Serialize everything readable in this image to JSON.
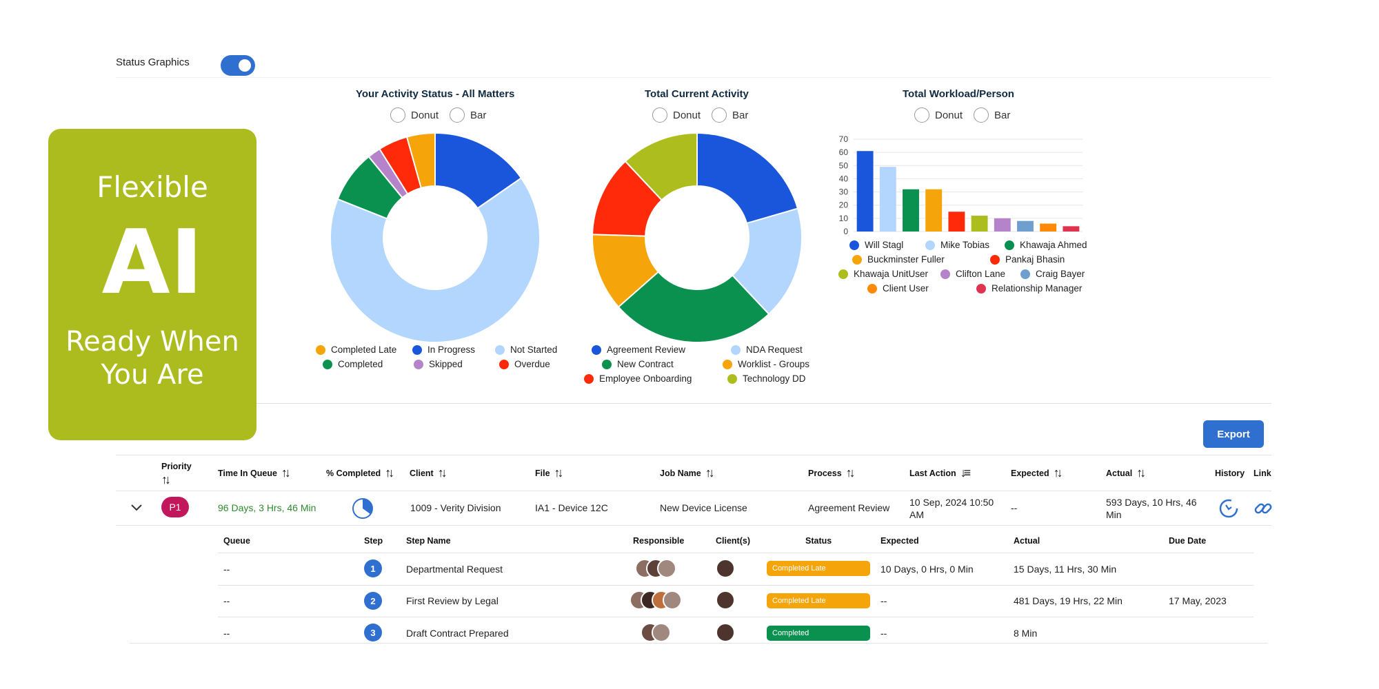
{
  "toggle": {
    "label": "Status Graphics",
    "checked": true
  },
  "charts": {
    "activity": {
      "title": "Your Activity Status - All Matters",
      "options": [
        "Donut",
        "Bar"
      ],
      "legend": [
        {
          "label": "Completed Late",
          "color": "#f5a40a"
        },
        {
          "label": "In Progress",
          "color": "#1a56db"
        },
        {
          "label": "Not Started",
          "color": "#b3d6ff"
        },
        {
          "label": "Completed",
          "color": "#0a9150"
        },
        {
          "label": "Skipped",
          "color": "#b583c9"
        },
        {
          "label": "Overdue",
          "color": "#ff2a0a"
        }
      ]
    },
    "current": {
      "title": "Total Current Activity",
      "options": [
        "Donut",
        "Bar"
      ],
      "legend": [
        {
          "label": "Agreement Review",
          "color": "#1a56db"
        },
        {
          "label": "NDA Request",
          "color": "#b3d6ff"
        },
        {
          "label": "New Contract",
          "color": "#0a9150"
        },
        {
          "label": "Worklist - Groups",
          "color": "#f5a40a"
        },
        {
          "label": "Employee Onboarding",
          "color": "#ff2a0a"
        },
        {
          "label": "Technology DD",
          "color": "#aebd1e"
        }
      ]
    },
    "workload": {
      "title": "Total Workload/Person",
      "options": [
        "Donut",
        "Bar"
      ],
      "legend": [
        {
          "label": "Will Stagl",
          "color": "#1a56db"
        },
        {
          "label": "Mike Tobias",
          "color": "#b3d6ff"
        },
        {
          "label": "Khawaja Ahmed",
          "color": "#0a9150"
        },
        {
          "label": "Buckminster Fuller",
          "color": "#f5a40a"
        },
        {
          "label": "Pankaj Bhasin",
          "color": "#ff2a0a"
        },
        {
          "label": "Khawaja UnitUser",
          "color": "#aebd1e"
        },
        {
          "label": "Clifton Lane",
          "color": "#b583c9"
        },
        {
          "label": "Craig Bayer",
          "color": "#6f9fcf"
        },
        {
          "label": "Client User",
          "color": "#ff8a0a"
        },
        {
          "label": "Relationship Manager",
          "color": "#e0334f"
        }
      ]
    }
  },
  "chart_data": [
    {
      "type": "pie",
      "title": "Your Activity Status - All Matters",
      "donut": true,
      "slices": [
        {
          "label": "In Progress",
          "value": 15.2,
          "color": "#1a56db"
        },
        {
          "label": "Not Started",
          "value": 65.0,
          "color": "#b3d6ff"
        },
        {
          "label": "Completed",
          "value": 8.0,
          "color": "#0a9150"
        },
        {
          "label": "Skipped",
          "value": 2.0,
          "color": "#b583c9"
        },
        {
          "label": "Overdue",
          "value": 4.5,
          "color": "#ff2a0a"
        },
        {
          "label": "Completed Late",
          "value": 4.3,
          "color": "#f5a40a"
        }
      ]
    },
    {
      "type": "pie",
      "title": "Total Current Activity",
      "donut": true,
      "slices": [
        {
          "label": "Agreement Review",
          "value": 20.5,
          "color": "#1a56db"
        },
        {
          "label": "NDA Request",
          "value": 17.5,
          "color": "#b3d6ff"
        },
        {
          "label": "New Contract",
          "value": 25.5,
          "color": "#0a9150"
        },
        {
          "label": "Worklist - Groups",
          "value": 12.0,
          "color": "#f5a40a"
        },
        {
          "label": "Employee Onboarding",
          "value": 12.5,
          "color": "#ff2a0a"
        },
        {
          "label": "Technology DD",
          "value": 12.0,
          "color": "#aebd1e"
        }
      ]
    },
    {
      "type": "bar",
      "title": "Total Workload/Person",
      "ylim": [
        0,
        70
      ],
      "yticks": [
        0,
        10,
        20,
        30,
        40,
        50,
        60,
        70
      ],
      "grid": true,
      "legend_position": "bottom",
      "categories": [
        "Will Stagl",
        "Mike Tobias",
        "Khawaja Ahmed",
        "Buckminster Fuller",
        "Pankaj Bhasin",
        "Khawaja UnitUser",
        "Clifton Lane",
        "Craig Bayer",
        "Client User",
        "Relationship Manager"
      ],
      "values": [
        61,
        49,
        32,
        32,
        15,
        12,
        10,
        8,
        6,
        4
      ],
      "colors": [
        "#1a56db",
        "#b3d6ff",
        "#0a9150",
        "#f5a40a",
        "#ff2a0a",
        "#aebd1e",
        "#b583c9",
        "#6f9fcf",
        "#ff8a0a",
        "#e0334f"
      ]
    }
  ],
  "promo": {
    "line1": "Flexible",
    "line2": "AI",
    "line3": "Ready When You Are"
  },
  "export_label": "Export",
  "table": {
    "headers": {
      "priority": "Priority",
      "time_in_queue": "Time In Queue",
      "pct_completed": "% Completed",
      "client": "Client",
      "file": "File",
      "job_name": "Job Name",
      "process": "Process",
      "last_action": "Last Action",
      "expected": "Expected",
      "actual": "Actual",
      "history": "History",
      "link": "Link"
    },
    "row": {
      "priority": "P1",
      "time_in_queue": "96 Days, 3 Hrs, 46 Min",
      "pct_completed": 0.35,
      "client": "1009 - Verity Division",
      "file": "IA1 - Device 12C",
      "job_name": "New Device License",
      "process": "Agreement Review",
      "last_action": "10 Sep, 2024 10:50 AM",
      "expected": "--",
      "actual": "593 Days, 10 Hrs, 46 Min"
    },
    "colors": {
      "time_in_queue": "#2e8b2e",
      "priority": "#c2185b"
    }
  },
  "subtable": {
    "headers": {
      "queue": "Queue",
      "step": "Step",
      "step_name": "Step Name",
      "responsible": "Responsible",
      "clients": "Client(s)",
      "status": "Status",
      "expected": "Expected",
      "actual": "Actual",
      "due_date": "Due Date"
    },
    "rows": [
      {
        "queue": "--",
        "step": "1",
        "step_name": "Departmental Request",
        "status": "Completed Late",
        "status_color": "#f5a40a",
        "expected": "10 Days, 0 Hrs, 0 Min",
        "actual": "15 Days, 11 Hrs, 30 Min",
        "due_date": ""
      },
      {
        "queue": "--",
        "step": "2",
        "step_name": "First Review by Legal",
        "status": "Completed Late",
        "status_color": "#f5a40a",
        "expected": "--",
        "actual": "481 Days, 19 Hrs, 22 Min",
        "due_date": "17 May, 2023"
      },
      {
        "queue": "--",
        "step": "3",
        "step_name": "Draft Contract Prepared",
        "status": "Completed",
        "status_color": "#0a9150",
        "expected": "--",
        "actual": "8 Min",
        "due_date": ""
      }
    ]
  }
}
